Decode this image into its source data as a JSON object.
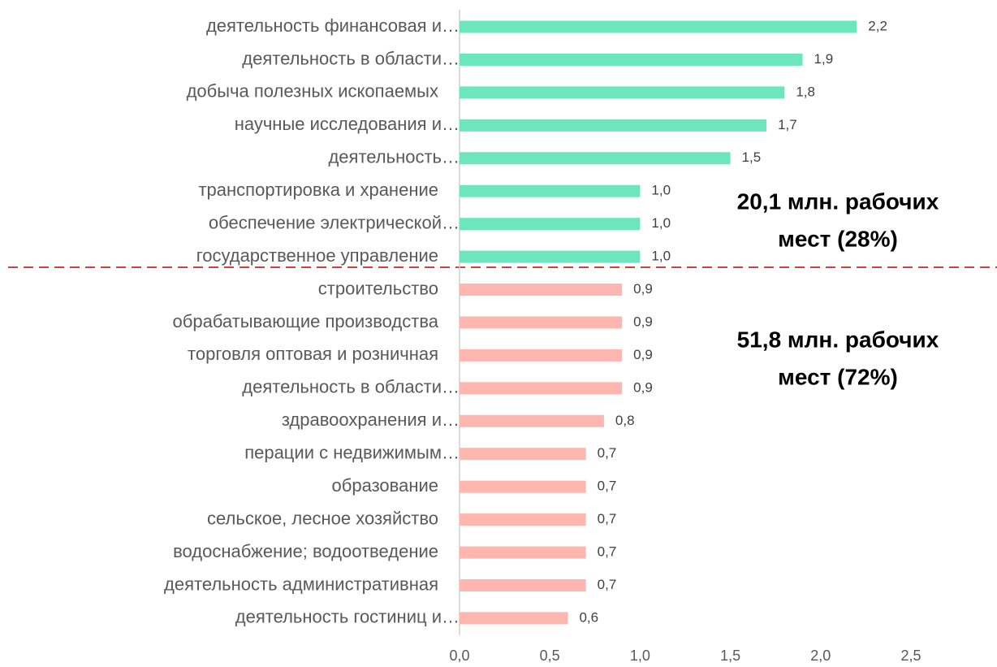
{
  "chart_data": {
    "type": "hbar",
    "categories": [
      "деятельность финансовая и…",
      "деятельность в области…",
      "добыча полезных ископаемых",
      "научные исследования и…",
      "деятельность…",
      "транспортировка и хранение",
      "обеспечение электрической…",
      "государственное управление",
      "строительство",
      "обрабатывающие производства",
      "торговля оптовая и розничная",
      "деятельность в области…",
      "здравоохранения и…",
      "перации с недвижимым…",
      "образование",
      "сельское, лесное хозяйство",
      "водоснабжение; водоотведение",
      "деятельность административная",
      "деятельность гостиниц и…"
    ],
    "values": [
      2.2,
      1.9,
      1.8,
      1.7,
      1.5,
      1.0,
      1.0,
      1.0,
      0.9,
      0.9,
      0.9,
      0.9,
      0.8,
      0.7,
      0.7,
      0.7,
      0.7,
      0.7,
      0.6
    ],
    "value_labels": [
      "2,2",
      "1,9",
      "1,8",
      "1,7",
      "1,5",
      "1,0",
      "1,0",
      "1,0",
      "0,9",
      "0,9",
      "0,9",
      "0,9",
      "0,8",
      "0,7",
      "0,7",
      "0,7",
      "0,7",
      "0,7",
      "0,6"
    ],
    "colors": [
      "#6ee6bd",
      "#6ee6bd",
      "#6ee6bd",
      "#6ee6bd",
      "#6ee6bd",
      "#6ee6bd",
      "#6ee6bd",
      "#6ee6bd",
      "#ffb6ae",
      "#ffb6ae",
      "#ffb6ae",
      "#ffb6ae",
      "#ffb6ae",
      "#ffb6ae",
      "#ffb6ae",
      "#ffb6ae",
      "#ffb6ae",
      "#ffb6ae",
      "#ffb6ae"
    ],
    "xlim": [
      0,
      2.5
    ],
    "xticks": [
      {
        "value": 0,
        "label": "0,0"
      },
      {
        "value": 0.5,
        "label": "0,5"
      },
      {
        "value": 1,
        "label": "1,0"
      },
      {
        "value": 1.5,
        "label": "1,5"
      },
      {
        "value": 2,
        "label": "2,0"
      },
      {
        "value": 2.5,
        "label": "2,5"
      }
    ],
    "annotations": [
      {
        "lines": [
          "20,1 млн. рабочих",
          "мест (28%)"
        ]
      },
      {
        "lines": [
          "51,8 млн. рабочих",
          "мест (72%)"
        ]
      }
    ]
  }
}
